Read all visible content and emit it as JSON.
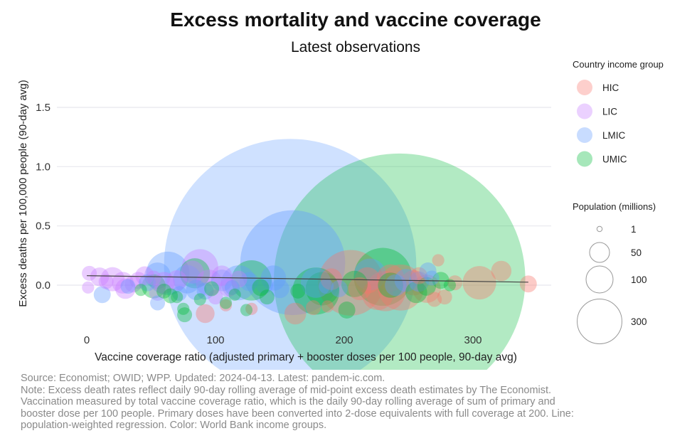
{
  "chart_data": {
    "type": "scatter",
    "title": "Excess mortality and vaccine coverage",
    "subtitle": "Latest observations",
    "xlabel": "Vaccine coverage ratio (adjusted primary + booster doses per 100 people, 90-day avg)",
    "ylabel": "Excess deaths per 100,000 people (90-day avg)",
    "xlim": [
      -15,
      355
    ],
    "ylim": [
      -0.3,
      1.75
    ],
    "x_ticks": [
      0,
      100,
      200,
      300
    ],
    "y_ticks": [
      0.0,
      0.5,
      1.0,
      1.5
    ],
    "x_tick_labels": [
      "0",
      "100",
      "200",
      "300"
    ],
    "y_tick_labels": [
      "0.0",
      "0.5",
      "1.0",
      "1.5"
    ],
    "grid": true,
    "legend_placement": "right",
    "color_legend_title": "Country income group",
    "size_legend_title": "Population (millions)",
    "size_legend": [
      {
        "label": "1",
        "value": 1
      },
      {
        "label": "50",
        "value": 50
      },
      {
        "label": "100",
        "value": 100
      },
      {
        "label": "300",
        "value": 300
      }
    ],
    "regression_line": {
      "x": [
        0,
        343
      ],
      "y": [
        0.08,
        0.025
      ]
    },
    "series": [
      {
        "name": "HIC",
        "color": "#f8766d",
        "points": [
          {
            "x": 205,
            "y": 0.02,
            "pop": 84
          },
          {
            "x": 305,
            "y": 0.02,
            "pop": 18
          },
          {
            "x": 343,
            "y": 0.01,
            "pop": 3
          },
          {
            "x": 322,
            "y": 0.12,
            "pop": 5
          },
          {
            "x": 232,
            "y": -0.05,
            "pop": 28
          },
          {
            "x": 244,
            "y": -0.02,
            "pop": 38
          },
          {
            "x": 218,
            "y": 0.04,
            "pop": 10
          },
          {
            "x": 264,
            "y": -0.03,
            "pop": 12
          },
          {
            "x": 190,
            "y": 0.05,
            "pop": 6
          },
          {
            "x": 176,
            "y": -0.19,
            "pop": 2
          },
          {
            "x": 162,
            "y": -0.24,
            "pop": 6
          },
          {
            "x": 92,
            "y": -0.24,
            "pop": 4
          },
          {
            "x": 128,
            "y": -0.2,
            "pop": 1
          },
          {
            "x": 270,
            "y": -0.12,
            "pop": 2
          },
          {
            "x": 278,
            "y": -0.1,
            "pop": 2
          },
          {
            "x": 254,
            "y": 0.02,
            "pop": 9
          },
          {
            "x": 226,
            "y": -0.08,
            "pop": 15
          },
          {
            "x": 212,
            "y": -0.03,
            "pop": 7
          },
          {
            "x": 286,
            "y": 0.02,
            "pop": 2
          },
          {
            "x": 236,
            "y": 0.06,
            "pop": 11
          },
          {
            "x": 273,
            "y": 0.21,
            "pop": 1
          },
          {
            "x": 187,
            "y": -0.18,
            "pop": 1
          },
          {
            "x": 108,
            "y": -0.17,
            "pop": 1
          },
          {
            "x": 258,
            "y": 0.08,
            "pop": 3
          }
        ]
      },
      {
        "name": "LIC",
        "color": "#c77cff",
        "points": [
          {
            "x": 2,
            "y": 0.1,
            "pop": 2
          },
          {
            "x": 10,
            "y": 0.07,
            "pop": 4
          },
          {
            "x": 20,
            "y": 0.05,
            "pop": 8
          },
          {
            "x": 28,
            "y": 0.02,
            "pop": 6
          },
          {
            "x": 30,
            "y": -0.03,
            "pop": 5
          },
          {
            "x": 40,
            "y": 0.04,
            "pop": 3
          },
          {
            "x": 45,
            "y": 0.08,
            "pop": 4
          },
          {
            "x": 52,
            "y": 0.06,
            "pop": 2
          },
          {
            "x": 60,
            "y": 0.02,
            "pop": 6
          },
          {
            "x": 70,
            "y": 0.04,
            "pop": 5
          },
          {
            "x": 88,
            "y": 0.15,
            "pop": 22
          },
          {
            "x": 95,
            "y": 0.02,
            "pop": 10
          },
          {
            "x": 105,
            "y": 0.08,
            "pop": 5
          },
          {
            "x": 110,
            "y": -0.02,
            "pop": 4
          },
          {
            "x": 118,
            "y": 0.05,
            "pop": 3
          },
          {
            "x": 1,
            "y": -0.02,
            "pop": 1
          },
          {
            "x": 15,
            "y": 0.03,
            "pop": 2
          },
          {
            "x": 36,
            "y": 0.01,
            "pop": 3
          },
          {
            "x": 82,
            "y": 0.11,
            "pop": 7
          },
          {
            "x": 55,
            "y": -0.06,
            "pop": 3
          },
          {
            "x": 100,
            "y": -0.1,
            "pop": 2
          }
        ]
      },
      {
        "name": "LMIC",
        "color": "#619cff",
        "points": [
          {
            "x": 158,
            "y": 0.17,
            "pop": 1420
          },
          {
            "x": 160,
            "y": 0.19,
            "pop": 230
          },
          {
            "x": 63,
            "y": 0.1,
            "pop": 33
          },
          {
            "x": 118,
            "y": 0.02,
            "pop": 20
          },
          {
            "x": 55,
            "y": 0.08,
            "pop": 10
          },
          {
            "x": 78,
            "y": 0.05,
            "pop": 12
          },
          {
            "x": 85,
            "y": -0.04,
            "pop": 5
          },
          {
            "x": 105,
            "y": 0.04,
            "pop": 6
          },
          {
            "x": 145,
            "y": 0.06,
            "pop": 9
          },
          {
            "x": 178,
            "y": 0.02,
            "pop": 14
          },
          {
            "x": 220,
            "y": 0.09,
            "pop": 16
          },
          {
            "x": 248,
            "y": 0.04,
            "pop": 7
          },
          {
            "x": 258,
            "y": 0.03,
            "pop": 5
          },
          {
            "x": 265,
            "y": 0.12,
            "pop": 3
          },
          {
            "x": 268,
            "y": 0.06,
            "pop": 2
          },
          {
            "x": 150,
            "y": -0.03,
            "pop": 4
          },
          {
            "x": 138,
            "y": 0.0,
            "pop": 3
          },
          {
            "x": 12,
            "y": -0.08,
            "pop": 3
          },
          {
            "x": 32,
            "y": -0.01,
            "pop": 2
          },
          {
            "x": 55,
            "y": -0.15,
            "pop": 2
          },
          {
            "x": 72,
            "y": -0.07,
            "pop": 2
          },
          {
            "x": 92,
            "y": -0.05,
            "pop": 3
          },
          {
            "x": 113,
            "y": -0.02,
            "pop": 2
          },
          {
            "x": 126,
            "y": 0.03,
            "pop": 4
          },
          {
            "x": 186,
            "y": -0.01,
            "pop": 2
          },
          {
            "x": 196,
            "y": -0.03,
            "pop": 3
          },
          {
            "x": 240,
            "y": 0.0,
            "pop": 6
          },
          {
            "x": 47,
            "y": 0.02,
            "pop": 3
          }
        ]
      },
      {
        "name": "UMIC",
        "color": "#00ba38",
        "points": [
          {
            "x": 243,
            "y": 0.05,
            "pop": 1410
          },
          {
            "x": 230,
            "y": 0.07,
            "pop": 64
          },
          {
            "x": 178,
            "y": -0.05,
            "pop": 40
          },
          {
            "x": 128,
            "y": 0.04,
            "pop": 28
          },
          {
            "x": 183,
            "y": -0.03,
            "pop": 18
          },
          {
            "x": 84,
            "y": 0.1,
            "pop": 14
          },
          {
            "x": 52,
            "y": -0.01,
            "pop": 8
          },
          {
            "x": 208,
            "y": 0.01,
            "pop": 10
          },
          {
            "x": 236,
            "y": 0.0,
            "pop": 9
          },
          {
            "x": 256,
            "y": -0.06,
            "pop": 6
          },
          {
            "x": 275,
            "y": 0.04,
            "pop": 3
          },
          {
            "x": 202,
            "y": -0.21,
            "pop": 3
          },
          {
            "x": 76,
            "y": -0.25,
            "pop": 2
          },
          {
            "x": 124,
            "y": -0.21,
            "pop": 1
          },
          {
            "x": 108,
            "y": -0.15,
            "pop": 1
          },
          {
            "x": 60,
            "y": -0.05,
            "pop": 2
          },
          {
            "x": 65,
            "y": -0.09,
            "pop": 2
          },
          {
            "x": 70,
            "y": -0.1,
            "pop": 1
          },
          {
            "x": 75,
            "y": -0.2,
            "pop": 1
          },
          {
            "x": 88,
            "y": -0.12,
            "pop": 1
          },
          {
            "x": 97,
            "y": -0.03,
            "pop": 2
          },
          {
            "x": 140,
            "y": -0.1,
            "pop": 2
          },
          {
            "x": 164,
            "y": -0.05,
            "pop": 2
          },
          {
            "x": 135,
            "y": -0.02,
            "pop": 3
          },
          {
            "x": 264,
            "y": -0.01,
            "pop": 4
          },
          {
            "x": 282,
            "y": 0.0,
            "pop": 1
          },
          {
            "x": 42,
            "y": -0.04,
            "pop": 1
          },
          {
            "x": 115,
            "y": -0.08,
            "pop": 1
          }
        ]
      }
    ]
  },
  "notes": {
    "source": "Source: Economist; OWID; WPP. Updated: 2024-04-13. Latest: pandem-ic.com.",
    "line1": "Note: Excess death rates reflect daily 90-day rolling average of mid-point excess death estimates by The Economist.",
    "line2": "Vaccination measured by total vaccine coverage ratio, which is the daily 90-day rolling average of sum of primary and",
    "line3": "booster dose per 100 people. Primary doses have been converted into 2-dose equivalents with full coverage at 200. Line:",
    "line4": "population-weighted regression. Color: World Bank income groups."
  }
}
